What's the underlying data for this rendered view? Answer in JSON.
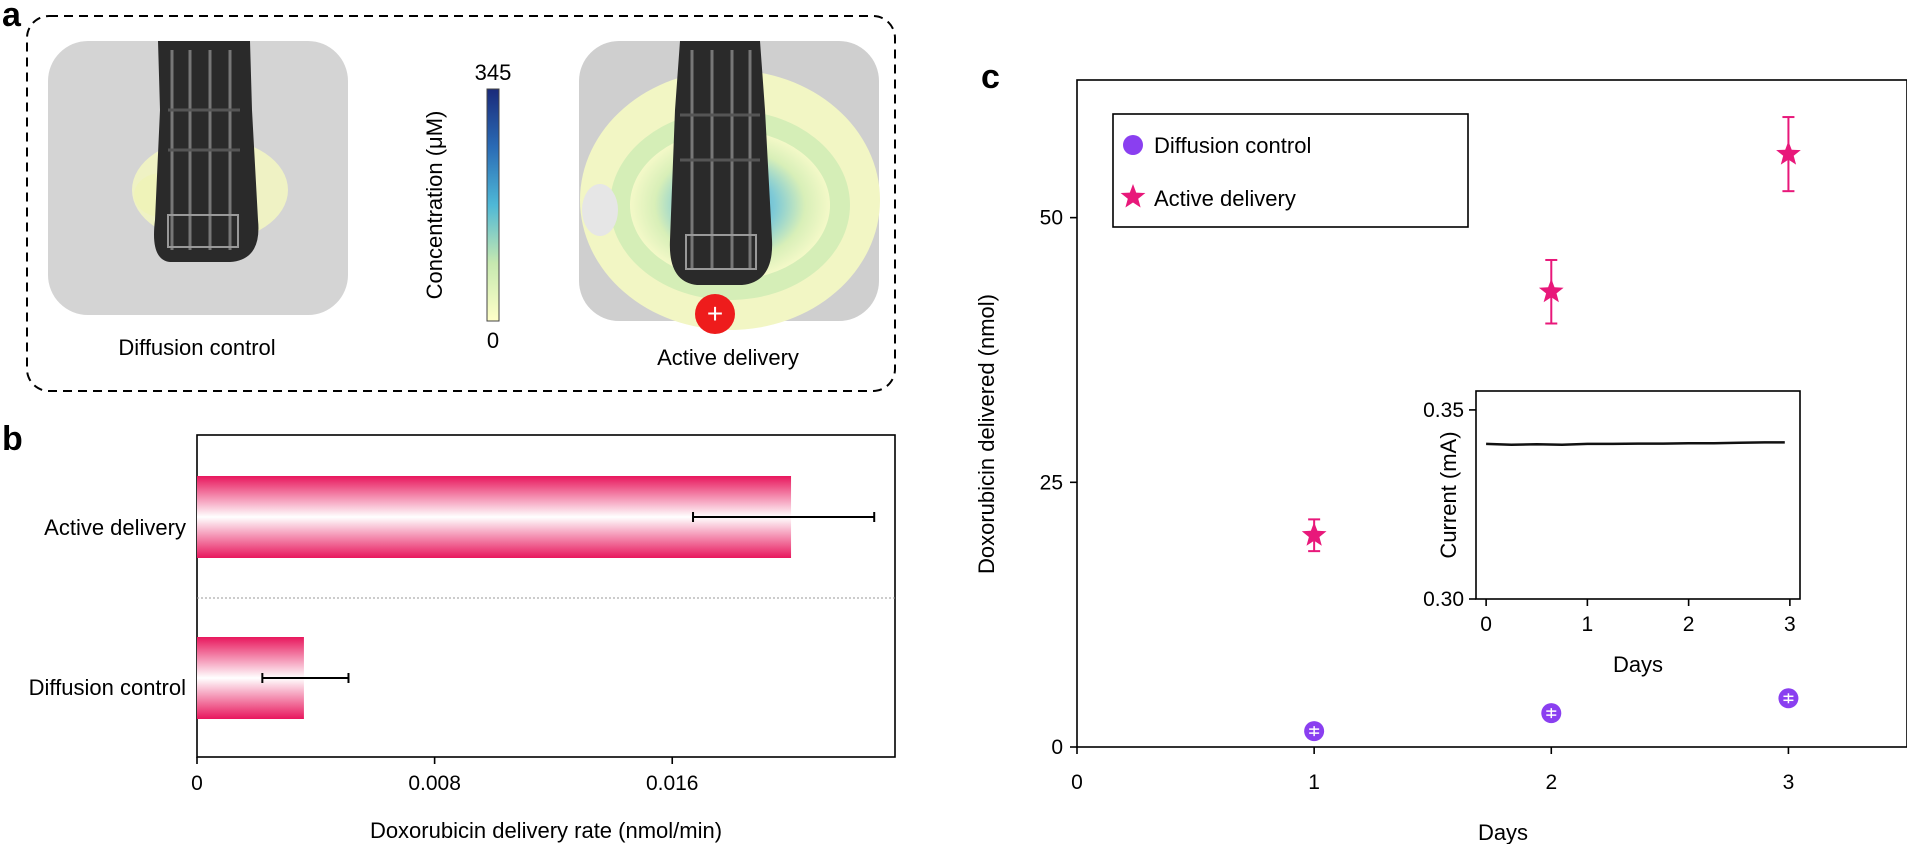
{
  "panel_labels": {
    "a": "a",
    "b": "b",
    "c": "c"
  },
  "panel_a": {
    "left_caption": "Diffusion control",
    "right_caption": "Active delivery",
    "colorbar": {
      "label": "Concentration (μM)",
      "max_label": "345",
      "min_label": "0",
      "max": 345,
      "min": 0
    },
    "electrode_symbol": "+"
  },
  "chart_data": [
    {
      "type": "bar",
      "orientation": "horizontal",
      "xlabel": "Doxorubicin delivery rate (nmol/min)",
      "xlim": [
        0,
        0.0235
      ],
      "xticks": [
        0,
        0.008,
        0.016
      ],
      "xtick_labels": [
        "0",
        "0.008",
        "0.016"
      ],
      "categories": [
        "Active delivery",
        "Diffusion control"
      ],
      "values": [
        0.02,
        0.0036
      ],
      "error_low": [
        0.0167,
        0.0022
      ],
      "error_high": [
        0.0228,
        0.0051
      ],
      "bar_color": "#e8175d"
    },
    {
      "type": "scatter",
      "xlabel": "Days",
      "ylabel": "Doxorubicin delivered (nmol)",
      "xlim": [
        0,
        3.5
      ],
      "ylim": [
        0,
        63
      ],
      "xticks": [
        0,
        1,
        2,
        3
      ],
      "xtick_labels": [
        "0",
        "1",
        "2",
        "3"
      ],
      "yticks": [
        0,
        25,
        50
      ],
      "ytick_labels": [
        "0",
        "25",
        "50"
      ],
      "legend": {
        "position": "top-left"
      },
      "series": [
        {
          "name": "Diffusion control",
          "marker": "circle",
          "color": "#8a3ff0",
          "x": [
            1,
            2,
            3
          ],
          "y": [
            1.5,
            3.2,
            4.6
          ],
          "err": [
            0.7,
            0.8,
            0.8
          ]
        },
        {
          "name": "Active delivery",
          "marker": "star",
          "color": "#e8187a",
          "x": [
            1,
            2,
            3
          ],
          "y": [
            20.0,
            43.0,
            56.0
          ],
          "err": [
            1.5,
            3.0,
            3.5
          ]
        }
      ]
    },
    {
      "type": "line",
      "inset": true,
      "xlabel": "Days",
      "ylabel": "Current (mA)",
      "xlim": [
        -0.1,
        3.1
      ],
      "ylim": [
        0.3,
        0.355
      ],
      "xticks": [
        0,
        1,
        2,
        3
      ],
      "xtick_labels": [
        "0",
        "1",
        "2",
        "3"
      ],
      "yticks": [
        0.3,
        0.35
      ],
      "ytick_labels": [
        "0.30",
        "0.35"
      ],
      "x": [
        0,
        0.25,
        0.5,
        0.75,
        1.0,
        1.25,
        1.5,
        1.75,
        2.0,
        2.25,
        2.5,
        2.75,
        2.95
      ],
      "y": [
        0.341,
        0.3408,
        0.3409,
        0.3408,
        0.341,
        0.341,
        0.3411,
        0.3411,
        0.3412,
        0.3412,
        0.3413,
        0.3414,
        0.3414
      ],
      "color": "#111111"
    }
  ]
}
